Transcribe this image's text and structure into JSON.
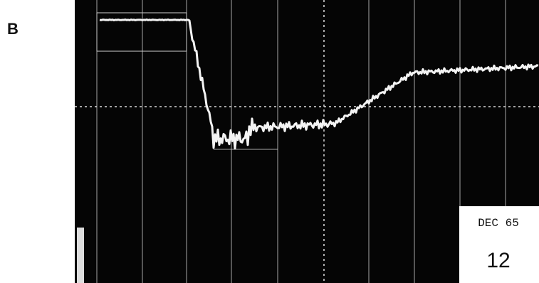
{
  "panel_label": "B",
  "photo": {
    "note_date": "DEC 65",
    "note_number": "12"
  }
}
